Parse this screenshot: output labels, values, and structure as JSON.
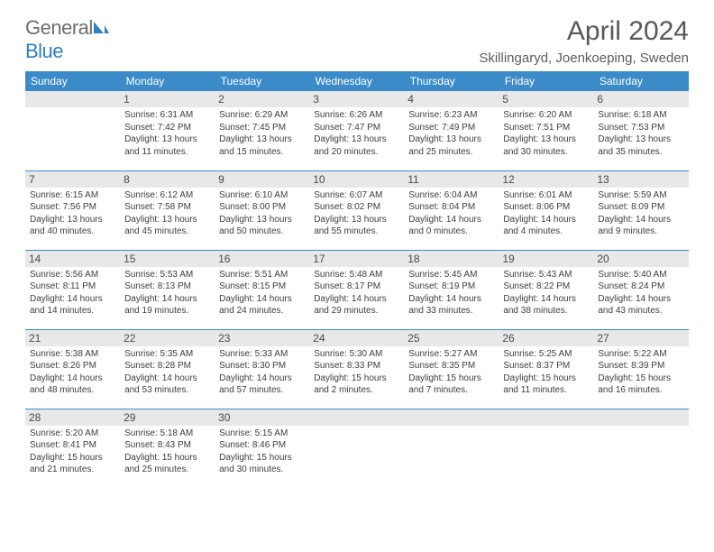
{
  "brand": {
    "part1": "General",
    "part2": "Blue"
  },
  "title": "April 2024",
  "location": "Skillingaryd, Joenkoeping, Sweden",
  "colors": {
    "header_bg": "#3b8bc9",
    "header_fg": "#ffffff",
    "daynum_bg": "#e8e8e8",
    "text": "#3d3d3d",
    "title": "#585858",
    "brand_gray": "#6e6e6e",
    "brand_blue": "#2f7fc1",
    "border": "#3b8bc9"
  },
  "weekdays": [
    "Sunday",
    "Monday",
    "Tuesday",
    "Wednesday",
    "Thursday",
    "Friday",
    "Saturday"
  ],
  "weeks": [
    [
      null,
      {
        "n": "1",
        "sr": "Sunrise: 6:31 AM",
        "ss": "Sunset: 7:42 PM",
        "dl": "Daylight: 13 hours and 11 minutes."
      },
      {
        "n": "2",
        "sr": "Sunrise: 6:29 AM",
        "ss": "Sunset: 7:45 PM",
        "dl": "Daylight: 13 hours and 15 minutes."
      },
      {
        "n": "3",
        "sr": "Sunrise: 6:26 AM",
        "ss": "Sunset: 7:47 PM",
        "dl": "Daylight: 13 hours and 20 minutes."
      },
      {
        "n": "4",
        "sr": "Sunrise: 6:23 AM",
        "ss": "Sunset: 7:49 PM",
        "dl": "Daylight: 13 hours and 25 minutes."
      },
      {
        "n": "5",
        "sr": "Sunrise: 6:20 AM",
        "ss": "Sunset: 7:51 PM",
        "dl": "Daylight: 13 hours and 30 minutes."
      },
      {
        "n": "6",
        "sr": "Sunrise: 6:18 AM",
        "ss": "Sunset: 7:53 PM",
        "dl": "Daylight: 13 hours and 35 minutes."
      }
    ],
    [
      {
        "n": "7",
        "sr": "Sunrise: 6:15 AM",
        "ss": "Sunset: 7:56 PM",
        "dl": "Daylight: 13 hours and 40 minutes."
      },
      {
        "n": "8",
        "sr": "Sunrise: 6:12 AM",
        "ss": "Sunset: 7:58 PM",
        "dl": "Daylight: 13 hours and 45 minutes."
      },
      {
        "n": "9",
        "sr": "Sunrise: 6:10 AM",
        "ss": "Sunset: 8:00 PM",
        "dl": "Daylight: 13 hours and 50 minutes."
      },
      {
        "n": "10",
        "sr": "Sunrise: 6:07 AM",
        "ss": "Sunset: 8:02 PM",
        "dl": "Daylight: 13 hours and 55 minutes."
      },
      {
        "n": "11",
        "sr": "Sunrise: 6:04 AM",
        "ss": "Sunset: 8:04 PM",
        "dl": "Daylight: 14 hours and 0 minutes."
      },
      {
        "n": "12",
        "sr": "Sunrise: 6:01 AM",
        "ss": "Sunset: 8:06 PM",
        "dl": "Daylight: 14 hours and 4 minutes."
      },
      {
        "n": "13",
        "sr": "Sunrise: 5:59 AM",
        "ss": "Sunset: 8:09 PM",
        "dl": "Daylight: 14 hours and 9 minutes."
      }
    ],
    [
      {
        "n": "14",
        "sr": "Sunrise: 5:56 AM",
        "ss": "Sunset: 8:11 PM",
        "dl": "Daylight: 14 hours and 14 minutes."
      },
      {
        "n": "15",
        "sr": "Sunrise: 5:53 AM",
        "ss": "Sunset: 8:13 PM",
        "dl": "Daylight: 14 hours and 19 minutes."
      },
      {
        "n": "16",
        "sr": "Sunrise: 5:51 AM",
        "ss": "Sunset: 8:15 PM",
        "dl": "Daylight: 14 hours and 24 minutes."
      },
      {
        "n": "17",
        "sr": "Sunrise: 5:48 AM",
        "ss": "Sunset: 8:17 PM",
        "dl": "Daylight: 14 hours and 29 minutes."
      },
      {
        "n": "18",
        "sr": "Sunrise: 5:45 AM",
        "ss": "Sunset: 8:19 PM",
        "dl": "Daylight: 14 hours and 33 minutes."
      },
      {
        "n": "19",
        "sr": "Sunrise: 5:43 AM",
        "ss": "Sunset: 8:22 PM",
        "dl": "Daylight: 14 hours and 38 minutes."
      },
      {
        "n": "20",
        "sr": "Sunrise: 5:40 AM",
        "ss": "Sunset: 8:24 PM",
        "dl": "Daylight: 14 hours and 43 minutes."
      }
    ],
    [
      {
        "n": "21",
        "sr": "Sunrise: 5:38 AM",
        "ss": "Sunset: 8:26 PM",
        "dl": "Daylight: 14 hours and 48 minutes."
      },
      {
        "n": "22",
        "sr": "Sunrise: 5:35 AM",
        "ss": "Sunset: 8:28 PM",
        "dl": "Daylight: 14 hours and 53 minutes."
      },
      {
        "n": "23",
        "sr": "Sunrise: 5:33 AM",
        "ss": "Sunset: 8:30 PM",
        "dl": "Daylight: 14 hours and 57 minutes."
      },
      {
        "n": "24",
        "sr": "Sunrise: 5:30 AM",
        "ss": "Sunset: 8:33 PM",
        "dl": "Daylight: 15 hours and 2 minutes."
      },
      {
        "n": "25",
        "sr": "Sunrise: 5:27 AM",
        "ss": "Sunset: 8:35 PM",
        "dl": "Daylight: 15 hours and 7 minutes."
      },
      {
        "n": "26",
        "sr": "Sunrise: 5:25 AM",
        "ss": "Sunset: 8:37 PM",
        "dl": "Daylight: 15 hours and 11 minutes."
      },
      {
        "n": "27",
        "sr": "Sunrise: 5:22 AM",
        "ss": "Sunset: 8:39 PM",
        "dl": "Daylight: 15 hours and 16 minutes."
      }
    ],
    [
      {
        "n": "28",
        "sr": "Sunrise: 5:20 AM",
        "ss": "Sunset: 8:41 PM",
        "dl": "Daylight: 15 hours and 21 minutes."
      },
      {
        "n": "29",
        "sr": "Sunrise: 5:18 AM",
        "ss": "Sunset: 8:43 PM",
        "dl": "Daylight: 15 hours and 25 minutes."
      },
      {
        "n": "30",
        "sr": "Sunrise: 5:15 AM",
        "ss": "Sunset: 8:46 PM",
        "dl": "Daylight: 15 hours and 30 minutes."
      },
      null,
      null,
      null,
      null
    ]
  ]
}
